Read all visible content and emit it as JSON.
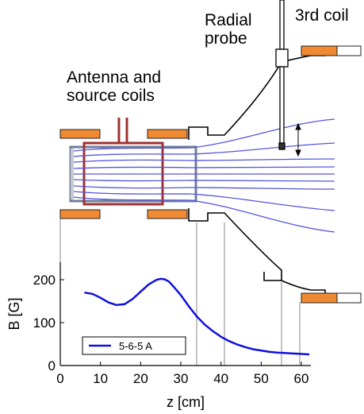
{
  "labels": {
    "radial_probe": [
      "Radial",
      "probe"
    ],
    "third_coil": "3rd coil",
    "antenna": [
      "Antenna and",
      "source coils"
    ]
  },
  "colors": {
    "coil": "#f08a32",
    "antenna": "#a03030",
    "field_lines": "#5555dd",
    "curve": "#1010dd",
    "tube": "#6f7f9a"
  },
  "chart_data": {
    "type": "line",
    "xlabel": "z [cm]",
    "ylabel": "B [G]",
    "xlim": [
      0,
      63
    ],
    "ylim": [
      0,
      210
    ],
    "xticks": [
      0,
      10,
      20,
      30,
      40,
      50,
      60
    ],
    "yticks": [
      0,
      100,
      200
    ],
    "grid": false,
    "legend": "bottom-left",
    "series": [
      {
        "name": "5-6-5 A",
        "x": [
          6,
          8,
          10,
          12,
          14,
          16,
          18,
          20,
          22,
          24,
          25,
          26,
          27,
          28,
          30,
          32,
          34,
          36,
          38,
          40,
          42,
          44,
          46,
          48,
          50,
          52,
          54,
          56,
          58,
          60,
          62
        ],
        "y": [
          170,
          167,
          158,
          147,
          141,
          143,
          155,
          172,
          189,
          200,
          202,
          201,
          196,
          186,
          164,
          138,
          114,
          95,
          80,
          67,
          57,
          49,
          43,
          38,
          35,
          32,
          30,
          29,
          28,
          27,
          26
        ]
      }
    ]
  }
}
